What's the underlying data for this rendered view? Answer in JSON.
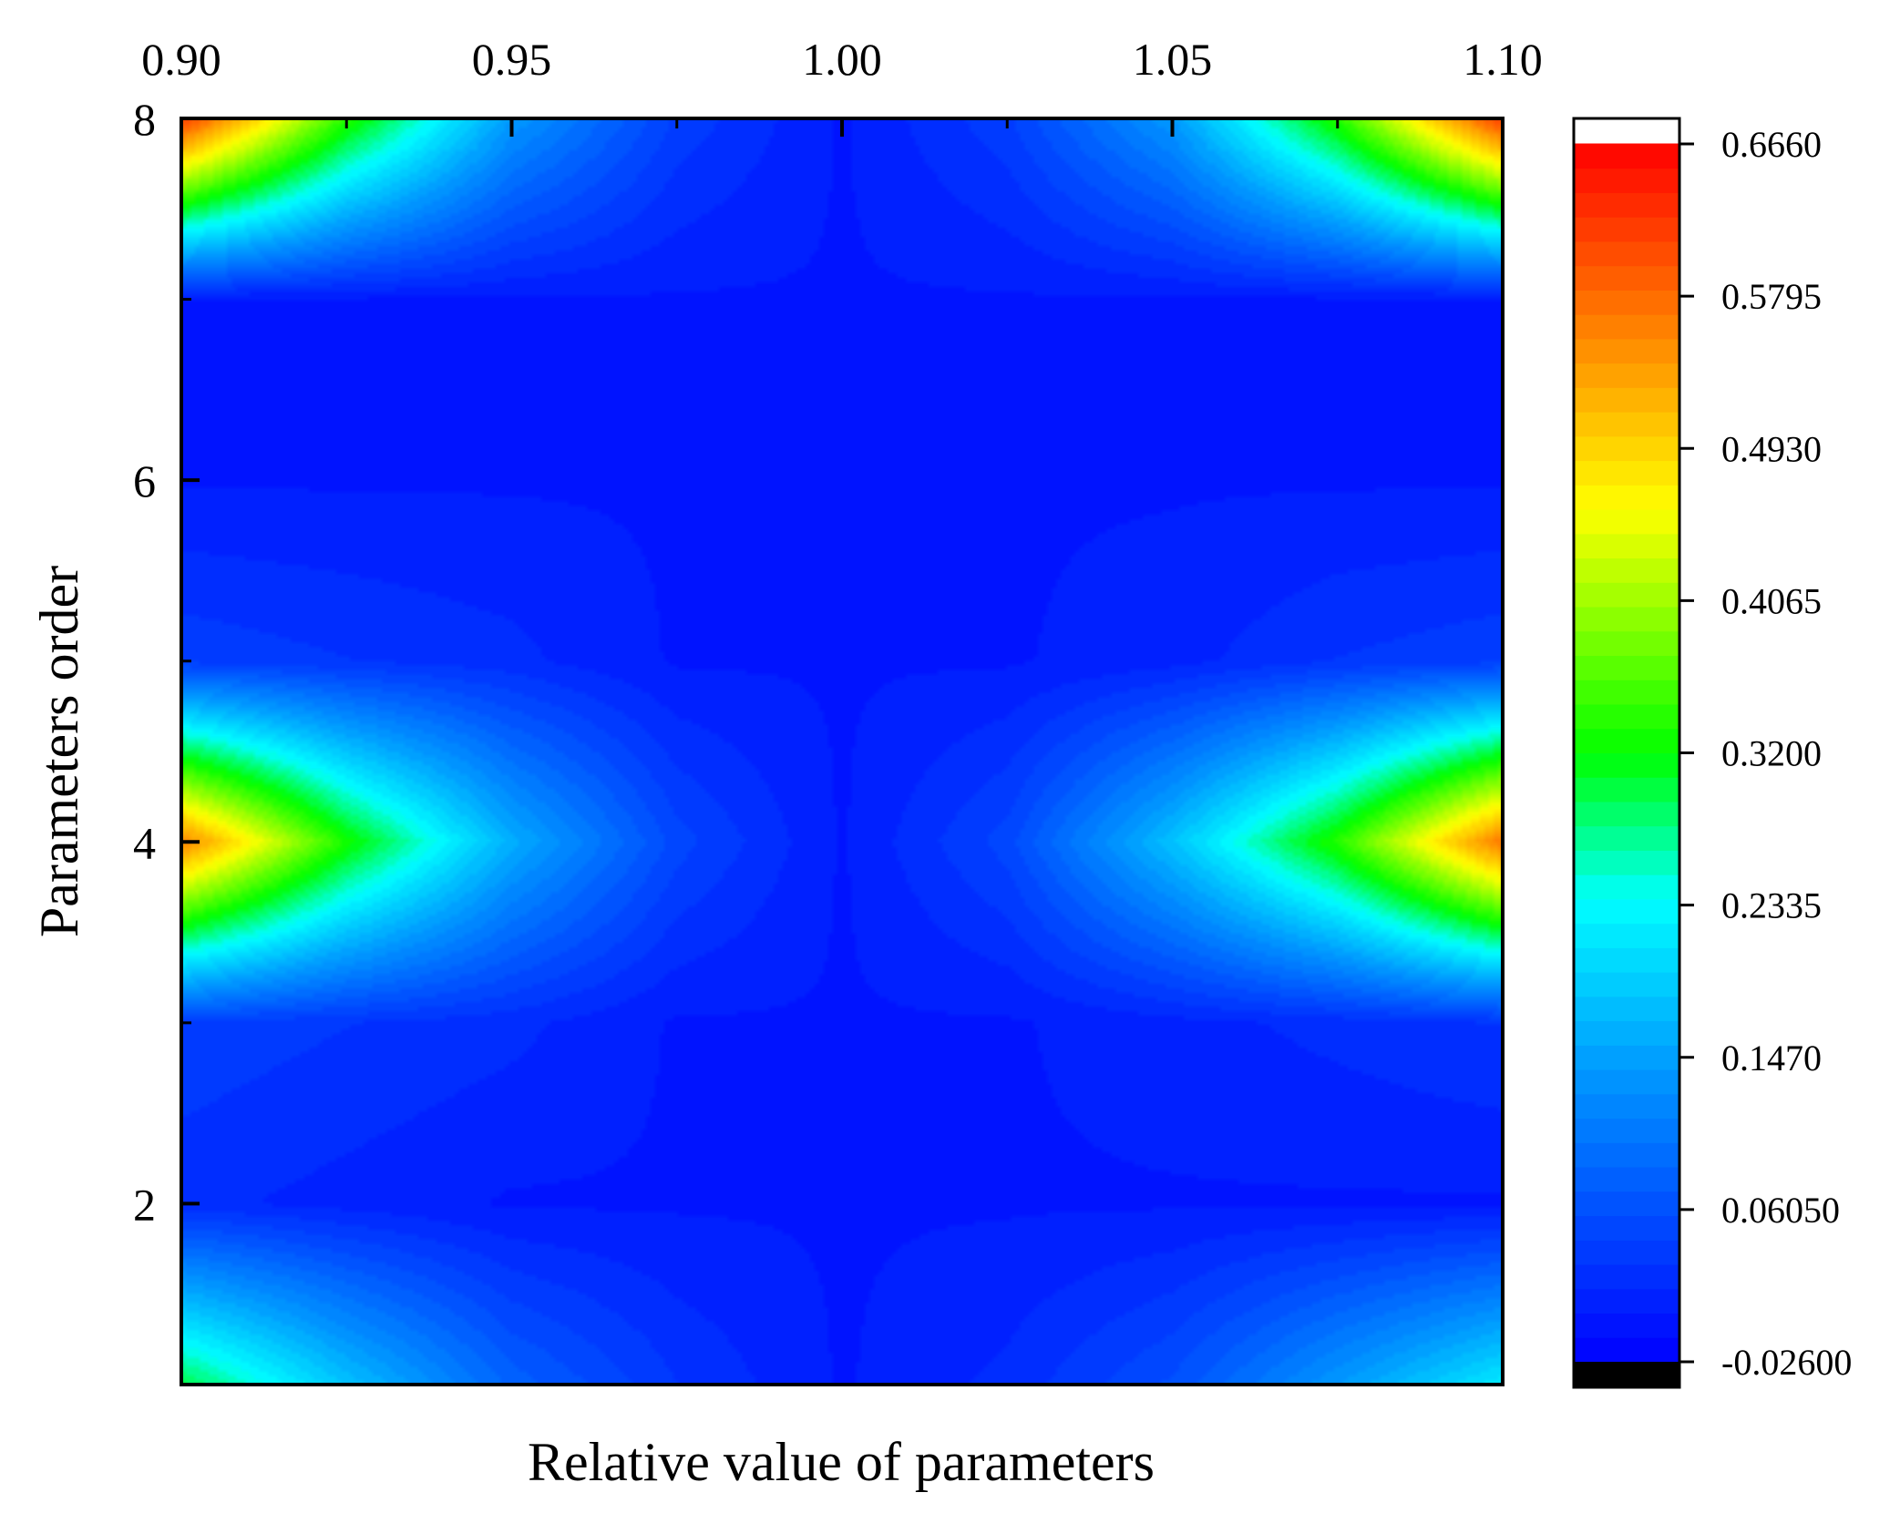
{
  "chart_data": {
    "type": "heatmap",
    "subtype": "filled-contour",
    "title": "",
    "xlabel": "Relative value of parameters",
    "ylabel": "Parameters order",
    "x_axis_position": "top",
    "xlim": [
      0.9,
      1.1
    ],
    "ylim": [
      1,
      8
    ],
    "x_ticks": [
      "0.90",
      "0.95",
      "1.00",
      "1.05",
      "1.10"
    ],
    "y_ticks": [
      "2",
      "4",
      "6",
      "8"
    ],
    "x": [
      0.9,
      0.925,
      0.95,
      0.975,
      1.0,
      1.025,
      1.05,
      1.075,
      1.1
    ],
    "y": [
      1,
      2,
      3,
      4,
      5,
      6,
      7,
      8
    ],
    "z": [
      [
        0.3,
        0.18,
        0.08,
        0.03,
        0.0,
        0.02,
        0.06,
        0.14,
        0.22
      ],
      [
        0.02,
        0.01,
        0.0,
        0.0,
        0.0,
        0.0,
        0.0,
        0.0,
        0.0
      ],
      [
        0.04,
        0.03,
        0.02,
        0.0,
        0.0,
        0.0,
        0.01,
        0.02,
        0.03
      ],
      [
        0.56,
        0.33,
        0.16,
        0.05,
        0.0,
        0.05,
        0.18,
        0.34,
        0.57
      ],
      [
        0.04,
        0.03,
        0.02,
        0.0,
        0.0,
        0.0,
        0.01,
        0.03,
        0.04
      ],
      [
        0.0,
        0.0,
        0.0,
        0.0,
        0.0,
        0.0,
        0.0,
        0.0,
        0.0
      ],
      [
        0.0,
        0.0,
        0.0,
        0.0,
        0.0,
        0.0,
        0.0,
        0.0,
        0.0
      ],
      [
        0.62,
        0.34,
        0.14,
        0.04,
        0.0,
        0.04,
        0.14,
        0.34,
        0.62
      ]
    ],
    "colorbar": {
      "min": -0.026,
      "max": 0.666,
      "tick_values": [
        0.666,
        0.5795,
        0.493,
        0.4065,
        0.32,
        0.2335,
        0.147,
        0.0605,
        -0.026
      ],
      "tick_labels": [
        "0.6660",
        "0.5795",
        "0.4930",
        "0.4065",
        "0.3200",
        "0.2335",
        "0.1470",
        "0.06050",
        "-0.02600"
      ],
      "levels": 50,
      "colormap": "rainbow"
    },
    "colormap_stops": [
      {
        "value": 0,
        "color": "#0000ff"
      },
      {
        "value": 0.25,
        "color": "#00a0ff"
      },
      {
        "value": 0.38,
        "color": "#00ffff"
      },
      {
        "value": 0.5,
        "color": "#00ff00"
      },
      {
        "value": 0.7,
        "color": "#ffff00"
      },
      {
        "value": 0.85,
        "color": "#ff8000"
      },
      {
        "value": 1,
        "color": "#ff0000"
      }
    ],
    "colors": {
      "over": "#ffffff",
      "under": "#000000",
      "axis": "#000000",
      "background": "#ffffff"
    }
  }
}
